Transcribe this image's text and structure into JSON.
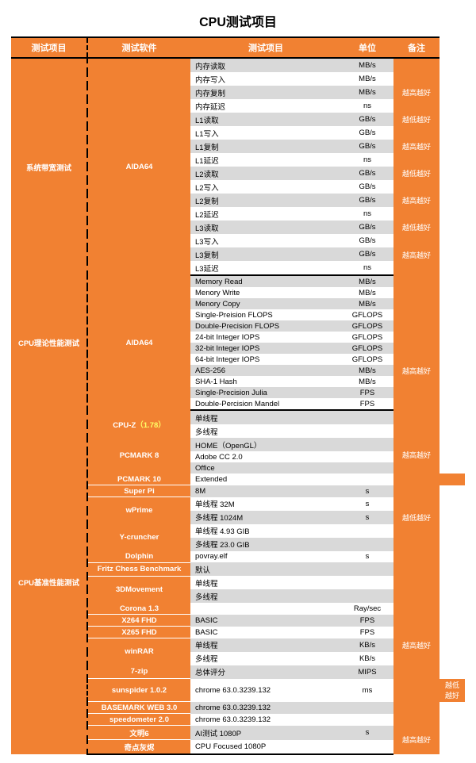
{
  "title": "CPU测试项目",
  "headers": {
    "c1": "测试项目",
    "c2": "测试软件",
    "c3": "测试项目",
    "c4": "单位",
    "c5": "备注"
  },
  "colors": {
    "accent": "#f18132",
    "stripe": "#d9d9d9",
    "text": "#000000",
    "headerText": "#ffffff"
  },
  "sections": [
    {
      "category": "系统带宽测试",
      "groups": [
        {
          "software": "AIDA64",
          "rows": [
            {
              "item": "内存读取",
              "unit": "MB/s",
              "remark": "",
              "stripe": true,
              "remarkSpan": 0
            },
            {
              "item": "内存写入",
              "unit": "MB/s",
              "remark": "越高越好",
              "remarkSpan": 3,
              "stripe": false
            },
            {
              "item": "内存复制",
              "unit": "MB/s",
              "stripe": true
            },
            {
              "item": "内存延迟",
              "unit": "ns",
              "stripe": false
            },
            {
              "item": "L1读取",
              "unit": "GB/s",
              "remark": "越低越好",
              "remarkSpan": 1,
              "stripe": true
            },
            {
              "item": "L1写入",
              "unit": "GB/s",
              "remark": "越高越好",
              "remarkSpan": 3,
              "stripe": false
            },
            {
              "item": "L1复制",
              "unit": "GB/s",
              "stripe": true
            },
            {
              "item": "L1延迟",
              "unit": "ns",
              "stripe": false
            },
            {
              "item": "L2读取",
              "unit": "GB/s",
              "remark": "越低越好",
              "remarkSpan": 1,
              "stripe": true
            },
            {
              "item": "L2写入",
              "unit": "GB/s",
              "remark": "越高越好",
              "remarkSpan": 3,
              "stripe": false
            },
            {
              "item": "L2复制",
              "unit": "GB/s",
              "stripe": true
            },
            {
              "item": "L2延迟",
              "unit": "ns",
              "stripe": false
            },
            {
              "item": "L3读取",
              "unit": "GB/s",
              "remark": "越低越好",
              "remarkSpan": 1,
              "stripe": true
            },
            {
              "item": "L3写入",
              "unit": "GB/s",
              "remark": "越高越好",
              "remarkSpan": 3,
              "stripe": false
            },
            {
              "item": "L3复制",
              "unit": "GB/s",
              "stripe": true
            },
            {
              "item": "L3延迟",
              "unit": "ns",
              "stripe": false
            },
            {
              "_spacer": true,
              "remark": "越低越好",
              "remarkSpan": 1
            }
          ]
        }
      ]
    },
    {
      "category": "CPU理论性能测试",
      "groups": [
        {
          "software": "AIDA64",
          "rows": [
            {
              "item": "Memory Read",
              "unit": "MB/s",
              "remark": "",
              "remarkSpan": 0,
              "stripe": true
            },
            {
              "item": "Menory Write",
              "unit": "MB/s",
              "remark": "",
              "remarkSpan": 3,
              "stripe": false
            },
            {
              "item": "Menory Copy",
              "unit": "MB/s",
              "stripe": true
            },
            {
              "item": "Single-Preision FLOPS",
              "unit": "GFLOPS",
              "stripe": false
            },
            {
              "item": "Double-Precision FLOPS",
              "unit": "GFLOPS",
              "remark": "",
              "remarkSpan": 1,
              "stripe": true
            },
            {
              "item": "24-bit Integer IOPS",
              "unit": "GFLOPS",
              "remark": "越高越好",
              "remarkSpan": 7,
              "stripe": false
            },
            {
              "item": "32-bit Integer IOPS",
              "unit": "GFLOPS",
              "stripe": true
            },
            {
              "item": "64-bit Integer IOPS",
              "unit": "GFLOPS",
              "stripe": false
            },
            {
              "item": "AES-256",
              "unit": "MB/s",
              "stripe": true
            },
            {
              "item": "SHA-1 Hash",
              "unit": "MB/s",
              "stripe": false
            },
            {
              "item": "Single-Precision Julia",
              "unit": "FPS",
              "stripe": true
            },
            {
              "item": "Double-Percision Mandel",
              "unit": "FPS",
              "stripe": false
            }
          ]
        }
      ]
    },
    {
      "category": "CPU基准性能测试",
      "groups": [
        {
          "software": "CPU-Z",
          "version": "（1.78）",
          "rows": [
            {
              "item": "单线程",
              "unit": "",
              "remark": "",
              "remarkSpan": 1,
              "stripe": true
            },
            {
              "item": "多线程",
              "unit": "",
              "remark": "越高越好",
              "remarkSpan": 5,
              "stripe": false
            }
          ]
        },
        {
          "software": "PCMARK 8",
          "rows": [
            {
              "item": "HOME（OpenGL）",
              "unit": "",
              "stripe": true
            },
            {
              "item": "Adobe CC 2.0",
              "unit": "",
              "stripe": false
            },
            {
              "item": "Office",
              "unit": "",
              "stripe": true
            }
          ]
        },
        {
          "software": "PCMARK 10",
          "rows": [
            {
              "item": "Extended",
              "unit": "",
              "remark": "",
              "remarkSpan": 1,
              "stripe": false
            }
          ]
        },
        {
          "software": "Super Pi",
          "rows": [
            {
              "item": "8M",
              "unit": "s",
              "remark": "",
              "remarkSpan": 1,
              "stripe": true
            }
          ]
        },
        {
          "software": "wPrime",
          "rows": [
            {
              "item": "单线程 32M",
              "unit": "s",
              "remark": "越低越好",
              "remarkSpan": 3,
              "stripe": false
            },
            {
              "item": "多线程 1024M",
              "unit": "s",
              "stripe": true
            }
          ]
        },
        {
          "software": "Y-cruncher",
          "rows": [
            {
              "item": "单线程 4.93 GIB",
              "unit": "",
              "stripe": false
            },
            {
              "item": "多线程 23.0 GIB",
              "unit": "",
              "remark": "",
              "remarkSpan": 1,
              "stripe": true
            }
          ]
        },
        {
          "software": "Dolphin",
          "rows": [
            {
              "item": "povray.elf",
              "unit": "s",
              "remark": "",
              "remarkSpan": 1,
              "stripe": false
            }
          ]
        },
        {
          "software": "Fritz Chess Benchmark",
          "rows": [
            {
              "item": "默认",
              "unit": "",
              "remark": "",
              "remarkSpan": 2,
              "stripe": true
            }
          ]
        },
        {
          "software": "3DMovement",
          "rows": [
            {
              "item": "单线程",
              "unit": "",
              "stripe": false
            },
            {
              "item": "多线程",
              "unit": "",
              "remark": "越高越好",
              "remarkSpan": 8,
              "stripe": true
            }
          ]
        },
        {
          "software": "Corona 1.3",
          "rows": [
            {
              "item": "",
              "unit": "Ray/sec",
              "stripe": false
            }
          ]
        },
        {
          "software": "X264 FHD",
          "rows": [
            {
              "item": "BASIC",
              "unit": "FPS",
              "stripe": true
            }
          ]
        },
        {
          "software": "X265 FHD",
          "rows": [
            {
              "item": "BASIC",
              "unit": "FPS",
              "stripe": false
            }
          ]
        },
        {
          "software": "winRAR",
          "rows": [
            {
              "item": "单线程",
              "unit": "KB/s",
              "stripe": true
            },
            {
              "item": "多线程",
              "unit": "KB/s",
              "stripe": false
            }
          ]
        },
        {
          "software": "7-zip",
          "rows": [
            {
              "item": "总体评分",
              "unit": "MIPS",
              "stripe": true
            }
          ]
        },
        {
          "software": "sunspider 1.0.2",
          "rows": [
            {
              "item": "chrome 63.0.3239.132",
              "unit": "ms",
              "remark": "越低越好",
              "remarkSpan": 1,
              "stripe": false
            }
          ]
        },
        {
          "software": "BASEMARK WEB 3.0",
          "rows": [
            {
              "item": "chrome 63.0.3239.132",
              "unit": "",
              "remark": "",
              "remarkSpan": 2,
              "stripe": true
            }
          ]
        },
        {
          "software": "speedometer 2.0",
          "rows": [
            {
              "item": "chrome 63.0.3239.132",
              "unit": "",
              "stripe": false
            }
          ]
        },
        {
          "software": "文明6",
          "rows": [
            {
              "item": "AI测试 1080P",
              "unit": "s",
              "remark": "越高越好",
              "remarkSpan": 2,
              "stripe": true
            }
          ]
        },
        {
          "software": "奇点灰烬",
          "rows": [
            {
              "item": "CPU Focused 1080P",
              "unit": "",
              "stripe": false
            }
          ]
        }
      ]
    }
  ]
}
